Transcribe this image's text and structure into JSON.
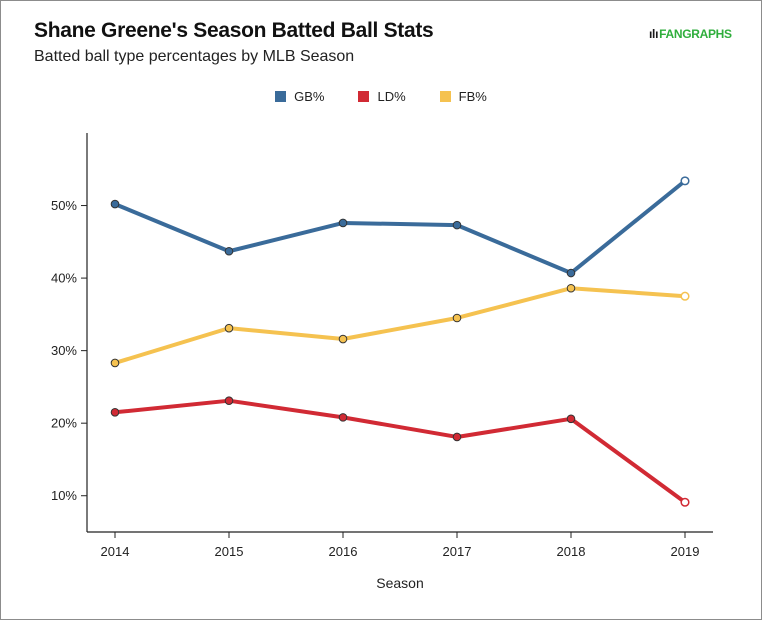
{
  "header": {
    "title": "Shane Greene's Season Batted Ball Stats",
    "subtitle": "Batted ball type percentages by MLB Season",
    "logo_text": "FANGRAPHS"
  },
  "chart_data": {
    "type": "line",
    "title": "Shane Greene's Season Batted Ball Stats",
    "subtitle": "Batted ball type percentages by MLB Season",
    "xlabel": "Season",
    "ylabel": "",
    "x": [
      2014,
      2015,
      2016,
      2017,
      2018,
      2019
    ],
    "ylim": [
      5,
      60
    ],
    "yticks": [
      10,
      20,
      30,
      40,
      50
    ],
    "ytick_labels": [
      "10%",
      "20%",
      "30%",
      "40%",
      "50%"
    ],
    "grid": false,
    "legend_position": "top-center",
    "series": [
      {
        "name": "GB%",
        "color": "#3a6b9a",
        "values": [
          50.2,
          43.7,
          47.6,
          47.3,
          40.7,
          53.4
        ]
      },
      {
        "name": "LD%",
        "color": "#d12a34",
        "values": [
          21.5,
          23.1,
          20.8,
          18.1,
          20.6,
          9.1
        ]
      },
      {
        "name": "FB%",
        "color": "#f5c250",
        "values": [
          28.3,
          33.1,
          31.6,
          34.5,
          38.6,
          37.5
        ]
      }
    ]
  }
}
